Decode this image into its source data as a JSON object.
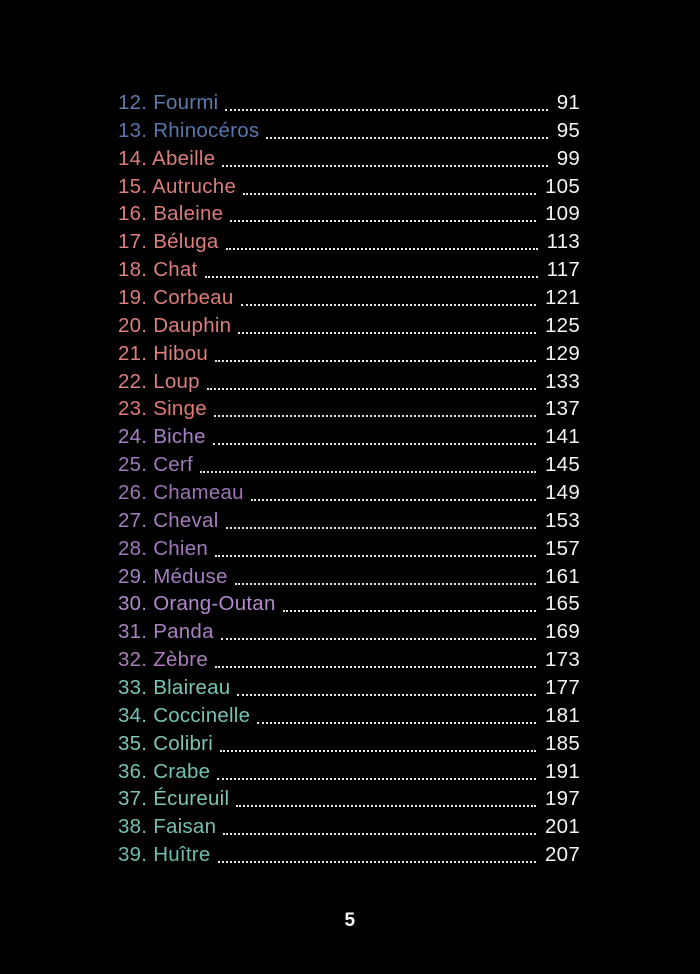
{
  "page": {
    "background": "#000000",
    "footer_page_number": "5"
  },
  "toc": {
    "dot_leader_color": "#E6E6E6",
    "page_number_color": "#F4F4F4",
    "entries": [
      {
        "label": "12. Fourmi",
        "page": "91",
        "color": "#5E7AA8"
      },
      {
        "label": "13. Rhinocéros",
        "page": "95",
        "color": "#5876AD"
      },
      {
        "label": "14. Abeille",
        "page": "99",
        "color": "#D97E7B"
      },
      {
        "label": "15. Autruche",
        "page": "105",
        "color": "#D97D7A"
      },
      {
        "label": "16. Baleine",
        "page": "109",
        "color": "#D87C79"
      },
      {
        "label": "17. Béluga",
        "page": "113",
        "color": "#DB7F7D"
      },
      {
        "label": "18. Chat",
        "page": "117",
        "color": "#DA7E7C"
      },
      {
        "label": "19. Corbeau",
        "page": "121",
        "color": "#D97D7A"
      },
      {
        "label": "20. Dauphin",
        "page": "125",
        "color": "#DC7F7C"
      },
      {
        "label": "21. Hibou",
        "page": "129",
        "color": "#DD7F7B"
      },
      {
        "label": "22. Loup",
        "page": "133",
        "color": "#DD7E7F"
      },
      {
        "label": "23. Singe",
        "page": "137",
        "color": "#E07B74"
      },
      {
        "label": "24. Biche",
        "page": "141",
        "color": "#A77FC4"
      },
      {
        "label": "25. Cerf",
        "page": "145",
        "color": "#9D77BA"
      },
      {
        "label": "26. Chameau",
        "page": "149",
        "color": "#9B73B4"
      },
      {
        "label": "27. Cheval",
        "page": "153",
        "color": "#A77CBD"
      },
      {
        "label": "28. Chien",
        "page": "157",
        "color": "#A078BE"
      },
      {
        "label": "29. Méduse",
        "page": "161",
        "color": "#A57DC2"
      },
      {
        "label": "30. Orang-Outan",
        "page": "165",
        "color": "#B28ACE"
      },
      {
        "label": "31. Panda",
        "page": "169",
        "color": "#A980C1"
      },
      {
        "label": "32. Zèbre",
        "page": "173",
        "color": "#AC7CB9"
      },
      {
        "label": "33. Blaireau",
        "page": "177",
        "color": "#79C4B4"
      },
      {
        "label": "34. Coccinelle",
        "page": "181",
        "color": "#74C3B3"
      },
      {
        "label": "35. Colibri",
        "page": "185",
        "color": "#7CC5B6"
      },
      {
        "label": "36. Crabe",
        "page": "191",
        "color": "#76C1B2"
      },
      {
        "label": "37. Écureuil",
        "page": "197",
        "color": "#7BC5B5"
      },
      {
        "label": "38. Faisan",
        "page": "201",
        "color": "#73C0B1"
      },
      {
        "label": "39. Huître",
        "page": "207",
        "color": "#6DBCAE"
      }
    ]
  }
}
